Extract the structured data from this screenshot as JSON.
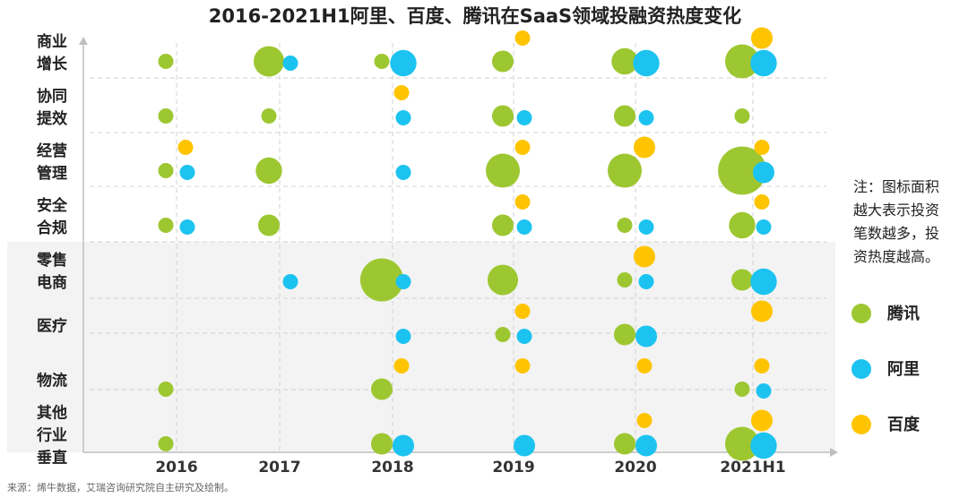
{
  "chart_data": {
    "type": "scatter",
    "title": "2016-2021H1阿里、百度、腾讯在SaaS领域投融资热度变化",
    "categories": [
      "2016",
      "2017",
      "2018",
      "2019",
      "2020",
      "2021H1"
    ],
    "rows": [
      {
        "lines": [
          "商业",
          "增长"
        ]
      },
      {
        "lines": [
          "协同",
          "提效"
        ]
      },
      {
        "lines": [
          "经营",
          "管理"
        ]
      },
      {
        "lines": [
          "安全",
          "合规"
        ]
      },
      {
        "lines": [
          "零售",
          "电商"
        ]
      },
      {
        "lines": [
          "医疗"
        ]
      },
      {
        "lines": [
          "物流"
        ]
      },
      {
        "lines": [
          "其他",
          "行业",
          "垂直"
        ]
      }
    ],
    "series": [
      {
        "name": "腾讯",
        "color": "#9DC731",
        "values": [
          [
            1,
            4,
            1,
            2,
            3,
            5
          ],
          [
            1,
            1,
            0,
            2,
            2,
            1
          ],
          [
            1,
            3,
            0,
            5,
            5,
            10
          ],
          [
            1,
            2,
            0,
            2,
            1,
            3
          ],
          [
            0,
            0,
            8,
            4,
            1,
            2
          ],
          [
            0,
            0,
            0,
            1,
            2,
            0
          ],
          [
            1,
            0,
            2,
            0,
            0,
            1
          ],
          [
            1,
            0,
            2,
            0,
            2,
            5
          ]
        ]
      },
      {
        "name": "阿里",
        "color": "#1CC3F0",
        "values": [
          [
            0,
            1,
            3,
            0,
            3,
            3
          ],
          [
            0,
            0,
            1,
            1,
            1,
            0
          ],
          [
            1,
            0,
            1,
            0,
            0,
            2
          ],
          [
            1,
            0,
            0,
            1,
            1,
            1
          ],
          [
            0,
            1,
            1,
            0,
            1,
            3
          ],
          [
            0,
            0,
            1,
            1,
            2,
            0
          ],
          [
            0,
            0,
            0,
            0,
            0,
            1
          ],
          [
            0,
            0,
            2,
            2,
            2,
            3
          ]
        ]
      },
      {
        "name": "百度",
        "color": "#FFC400",
        "values": [
          [
            0,
            0,
            0,
            1,
            0,
            2
          ],
          [
            0,
            0,
            1,
            0,
            0,
            0
          ],
          [
            1,
            0,
            0,
            1,
            2,
            1
          ],
          [
            0,
            0,
            0,
            1,
            0,
            1
          ],
          [
            0,
            0,
            0,
            0,
            2,
            0
          ],
          [
            0,
            0,
            0,
            1,
            0,
            2
          ],
          [
            0,
            0,
            1,
            1,
            1,
            1
          ],
          [
            0,
            0,
            0,
            0,
            1,
            2
          ]
        ]
      }
    ],
    "note": [
      "注：图标面积",
      "越大表示投资",
      "笔数越多，投",
      "资热度越高。"
    ],
    "legend_position": "right",
    "source": "来源：烯牛数据，艾瑞咨询研究院自主研究及绘制。"
  }
}
